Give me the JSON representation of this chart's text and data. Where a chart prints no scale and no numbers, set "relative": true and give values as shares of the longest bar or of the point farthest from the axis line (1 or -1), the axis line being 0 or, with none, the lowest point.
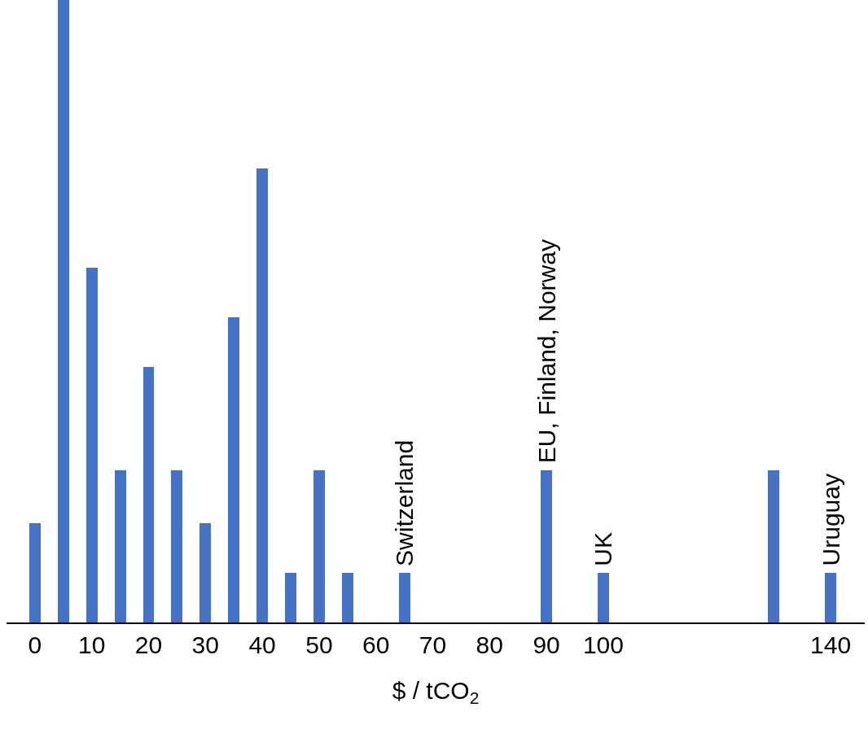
{
  "chart_data": {
    "type": "bar",
    "relative": true,
    "xlabel": "$ / tCO$_{2}$",
    "x": [
      0,
      5,
      10,
      15,
      20,
      25,
      30,
      35,
      40,
      45,
      50,
      55,
      65,
      90,
      100,
      130,
      140
    ],
    "values": [
      0.16,
      1,
      0.57,
      0.245,
      0.41,
      0.245,
      0.16,
      0.49,
      0.73,
      0.08,
      0.245,
      0.08,
      0.08,
      0.245,
      0.08,
      0.245,
      0.08
    ],
    "color": "#4472c4",
    "xlim": [
      -5,
      146
    ],
    "xticks": [
      0,
      10,
      20,
      30,
      40,
      50,
      60,
      70,
      80,
      90,
      100,
      140
    ],
    "annotations": [
      {
        "text": "Switzerland",
        "x": 65,
        "y": 0.08
      },
      {
        "text": "EU, Finland, Norway",
        "x": 90,
        "y": 0.245
      },
      {
        "text": "UK",
        "x": 100,
        "y": 0.08
      },
      {
        "text": "Uruguay",
        "x": 140,
        "y": 0.08
      }
    ]
  }
}
